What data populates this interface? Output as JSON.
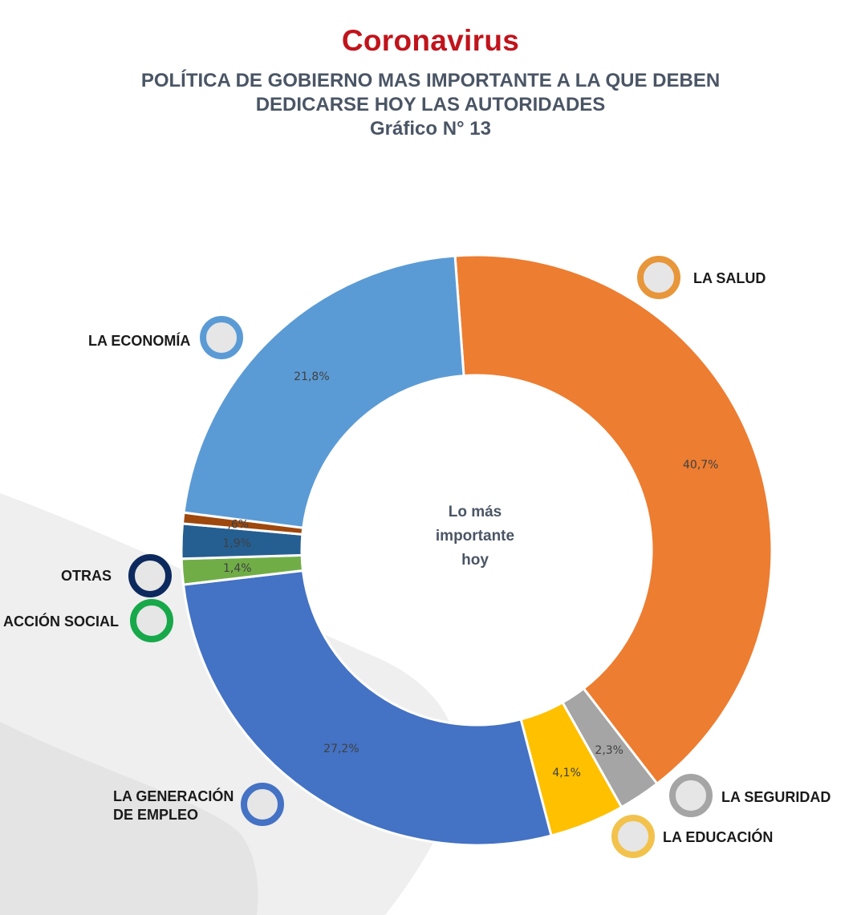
{
  "header": {
    "title": "Coronavirus",
    "subtitle_lines": [
      "POLÍTICA DE GOBIERNO MAS IMPORTANTE A LA QUE DEBEN",
      "DEDICARSE HOY LAS AUTORIDADES",
      "Gráfico N° 13"
    ]
  },
  "chart_data": {
    "type": "pie",
    "variant": "donut",
    "center_label": [
      "Lo más",
      "importante",
      "hoy"
    ],
    "slices": [
      {
        "category": "LA SALUD",
        "value": 40.7,
        "label": "40,7%",
        "color": "#ED7D31"
      },
      {
        "category": "LA SEGURIDAD",
        "value": 2.3,
        "label": "2,3%",
        "color": "#A5A5A5"
      },
      {
        "category": "LA EDUCACIÓN",
        "value": 4.1,
        "label": "4,1%",
        "color": "#FFC000"
      },
      {
        "category": "LA GENERACIÓN DE EMPLEO",
        "value": 27.2,
        "label": "27,2%",
        "color": "#4472C4"
      },
      {
        "category": "ACCIÓN SOCIAL",
        "value": 1.4,
        "label": "1,4%",
        "color": "#70AD47"
      },
      {
        "category": "OTRAS",
        "value": 1.9,
        "label": "1,9%",
        "color": "#255E91"
      },
      {
        "category": "",
        "value": 0.6,
        "label": ",6%",
        "color": "#9E480E"
      },
      {
        "category": "LA ECONOMÍA",
        "value": 21.8,
        "label": "21,8%",
        "color": "#5B9BD5"
      }
    ]
  },
  "legend": [
    {
      "label_lines": [
        "LA SALUD"
      ],
      "ring_color": "#E8963A"
    },
    {
      "label_lines": [
        "LA ECONOMÍA"
      ],
      "ring_color": "#5B9BD5"
    },
    {
      "label_lines": [
        "OTRAS"
      ],
      "ring_color": "#0D2A5E"
    },
    {
      "label_lines": [
        "ACCIÓN SOCIAL"
      ],
      "ring_color": "#17A84A"
    },
    {
      "label_lines": [
        "LA GENERACIÓN",
        "DE EMPLEO"
      ],
      "ring_color": "#4472C4"
    },
    {
      "label_lines": [
        "LA SEGURIDAD"
      ],
      "ring_color": "#A5A5A5"
    },
    {
      "label_lines": [
        "LA EDUCACIÓN"
      ],
      "ring_color": "#F2C24C"
    }
  ]
}
